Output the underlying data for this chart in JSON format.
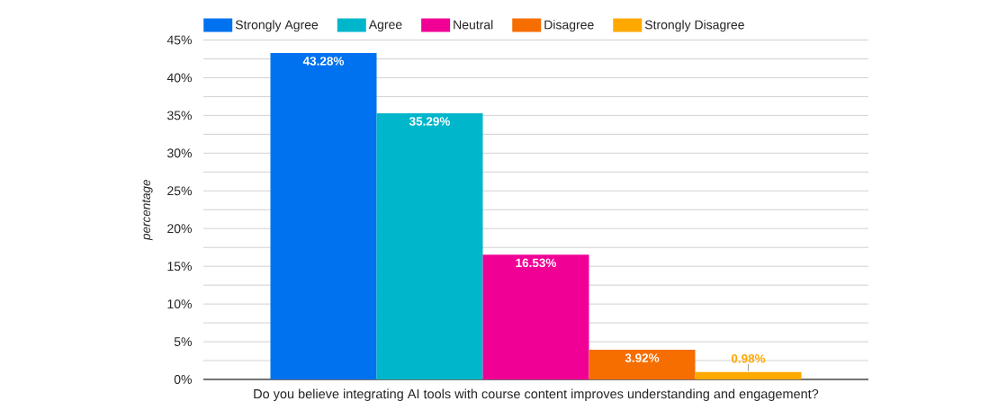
{
  "chart_data": {
    "type": "bar",
    "ylabel": "percentage",
    "categories": [
      "Do you believe integrating AI tools with course content improves understanding and engagement?"
    ],
    "series": [
      {
        "name": "Strongly Agree",
        "color": "#0072f0",
        "values": [
          43.28
        ],
        "value_labels": [
          "43.28%"
        ]
      },
      {
        "name": "Agree",
        "color": "#00b6cb",
        "values": [
          35.29
        ],
        "value_labels": [
          "35.29%"
        ]
      },
      {
        "name": "Neutral",
        "color": "#f10096",
        "values": [
          16.53
        ],
        "value_labels": [
          "16.53%"
        ]
      },
      {
        "name": "Disagree",
        "color": "#f66d00",
        "values": [
          3.92
        ],
        "value_labels": [
          "3.92%"
        ]
      },
      {
        "name": "Strongly Disagree",
        "color": "#ffa800",
        "values": [
          0.98
        ],
        "value_labels": [
          "0.98%"
        ]
      }
    ],
    "ylim": [
      0,
      45
    ],
    "yticks": [
      {
        "value": 0,
        "label": "0%"
      },
      {
        "value": 2.5,
        "label": null
      },
      {
        "value": 5,
        "label": "5%"
      },
      {
        "value": 7.5,
        "label": null
      },
      {
        "value": 10,
        "label": "10%"
      },
      {
        "value": 12.5,
        "label": null
      },
      {
        "value": 15,
        "label": "15%"
      },
      {
        "value": 17.5,
        "label": null
      },
      {
        "value": 20,
        "label": "20%"
      },
      {
        "value": 22.5,
        "label": null
      },
      {
        "value": 25,
        "label": "25%"
      },
      {
        "value": 27.5,
        "label": null
      },
      {
        "value": 30,
        "label": "30%"
      },
      {
        "value": 32.5,
        "label": null
      },
      {
        "value": 35,
        "label": "35%"
      },
      {
        "value": 37.5,
        "label": null
      },
      {
        "value": 40,
        "label": "40%"
      },
      {
        "value": 42.5,
        "label": null
      },
      {
        "value": 45,
        "label": "45%"
      }
    ],
    "grid": "y",
    "legend": "top"
  }
}
